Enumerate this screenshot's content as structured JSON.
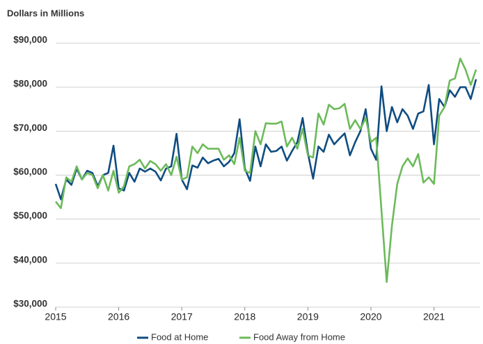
{
  "chart_data": {
    "type": "line",
    "title": "Dollars in Millions",
    "x": [
      2015.0,
      2015.083,
      2015.167,
      2015.25,
      2015.333,
      2015.417,
      2015.5,
      2015.583,
      2015.667,
      2015.75,
      2015.833,
      2015.917,
      2016.0,
      2016.083,
      2016.167,
      2016.25,
      2016.333,
      2016.417,
      2016.5,
      2016.583,
      2016.667,
      2016.75,
      2016.833,
      2016.917,
      2017.0,
      2017.083,
      2017.167,
      2017.25,
      2017.333,
      2017.417,
      2017.5,
      2017.583,
      2017.667,
      2017.75,
      2017.833,
      2017.917,
      2018.0,
      2018.083,
      2018.167,
      2018.25,
      2018.333,
      2018.417,
      2018.5,
      2018.583,
      2018.667,
      2018.75,
      2018.833,
      2018.917,
      2019.0,
      2019.083,
      2019.167,
      2019.25,
      2019.333,
      2019.417,
      2019.5,
      2019.583,
      2019.667,
      2019.75,
      2019.833,
      2019.917,
      2020.0,
      2020.083,
      2020.167,
      2020.25,
      2020.333,
      2020.417,
      2020.5,
      2020.583,
      2020.667,
      2020.75,
      2020.833,
      2020.917,
      2021.0,
      2021.083,
      2021.167,
      2021.25,
      2021.333,
      2021.417,
      2021.5,
      2021.583,
      2021.667
    ],
    "series": [
      {
        "name": "Food at Home",
        "color": "#0f4c81",
        "values": [
          58000,
          54500,
          59000,
          57800,
          61500,
          59000,
          61000,
          60500,
          57500,
          60000,
          60500,
          66700,
          57000,
          56500,
          60500,
          58500,
          61500,
          60800,
          61500,
          60800,
          58800,
          61500,
          62000,
          69400,
          59000,
          56800,
          62200,
          61700,
          64000,
          62700,
          63300,
          63700,
          62000,
          63000,
          65000,
          72700,
          61500,
          58700,
          66500,
          62000,
          67000,
          65300,
          65500,
          66500,
          63300,
          65500,
          67500,
          73000,
          65000,
          59200,
          66500,
          65300,
          69200,
          67000,
          68300,
          69500,
          64500,
          67500,
          70000,
          75000,
          66000,
          63500,
          80200,
          70000,
          75500,
          72000,
          75000,
          73500,
          70500,
          74000,
          74500,
          80500,
          67000,
          77300,
          75500,
          79300,
          77800,
          80000,
          80000,
          77300,
          81800
        ]
      },
      {
        "name": "Food Away from Home",
        "color": "#6cba5a",
        "values": [
          54000,
          52500,
          59500,
          58500,
          62000,
          59000,
          60500,
          60000,
          57000,
          60000,
          56500,
          61000,
          56000,
          57500,
          62000,
          62500,
          63500,
          61500,
          63200,
          62500,
          61000,
          62500,
          60000,
          64200,
          59000,
          59500,
          66500,
          65000,
          67000,
          66000,
          66000,
          66000,
          63500,
          64500,
          62500,
          68500,
          61000,
          60500,
          70000,
          67000,
          71800,
          71700,
          71700,
          72200,
          66500,
          68500,
          66000,
          70500,
          64500,
          64000,
          74000,
          71500,
          76000,
          75000,
          75200,
          76200,
          70500,
          72500,
          70500,
          73000,
          67500,
          68500,
          52000,
          35700,
          48500,
          58000,
          62000,
          63800,
          62000,
          64800,
          58300,
          59500,
          58000,
          73500,
          75500,
          81500,
          82000,
          86500,
          84000,
          80500,
          84000
        ]
      }
    ],
    "xlim": [
      2015,
      2021.667
    ],
    "xticks": [
      2015,
      2016,
      2017,
      2018,
      2019,
      2020,
      2021
    ],
    "ylim": [
      30000,
      90000
    ],
    "yticks": [
      {
        "value": 30000,
        "label": "$30,000"
      },
      {
        "value": 40000,
        "label": "$40,000"
      },
      {
        "value": 50000,
        "label": "$50,000"
      },
      {
        "value": 60000,
        "label": "$60,000"
      },
      {
        "value": 70000,
        "label": "$70,000"
      },
      {
        "value": 80000,
        "label": "$80,000"
      },
      {
        "value": 90000,
        "label": "$90,000"
      }
    ],
    "grid": true,
    "legend": "bottom"
  }
}
